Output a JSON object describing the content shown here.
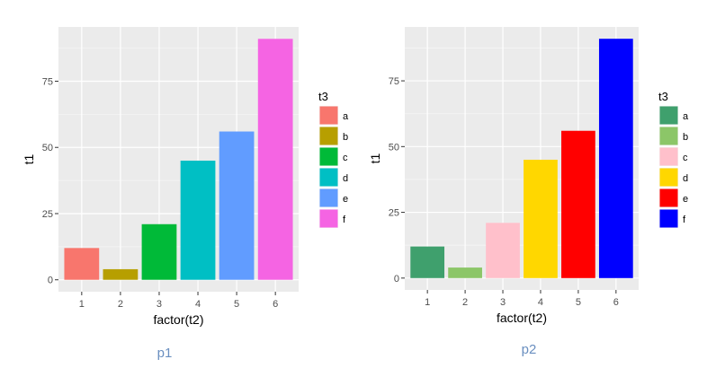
{
  "chart_data": [
    {
      "type": "bar",
      "caption": "p1",
      "categories": [
        "1",
        "2",
        "3",
        "4",
        "5",
        "6"
      ],
      "values": [
        12,
        4,
        21,
        45,
        56,
        91
      ],
      "xlabel": "factor(t2)",
      "ylabel": "t1",
      "yticks": [
        0,
        25,
        50,
        75
      ],
      "ylim": [
        -4.5,
        95.5
      ],
      "grid": true,
      "legend": {
        "title": "t3",
        "position": "right",
        "labels": [
          "a",
          "b",
          "c",
          "d",
          "e",
          "f"
        ]
      },
      "colors": [
        "#F8766D",
        "#B79F00",
        "#00BA38",
        "#00BFC4",
        "#619CFF",
        "#F564E3"
      ]
    },
    {
      "type": "bar",
      "caption": "p2",
      "categories": [
        "1",
        "2",
        "3",
        "4",
        "5",
        "6"
      ],
      "values": [
        12,
        4,
        21,
        45,
        56,
        91
      ],
      "xlabel": "factor(t2)",
      "ylabel": "t1",
      "yticks": [
        0,
        25,
        50,
        75
      ],
      "ylim": [
        -4.5,
        95.5
      ],
      "grid": true,
      "legend": {
        "title": "t3",
        "position": "right",
        "labels": [
          "a",
          "b",
          "c",
          "d",
          "e",
          "f"
        ]
      },
      "colors": [
        "#3FA06D",
        "#8CC668",
        "#FFC0CB",
        "#FFD700",
        "#FF0000",
        "#0000FF"
      ]
    }
  ],
  "caption_color": "#6A8FC0"
}
